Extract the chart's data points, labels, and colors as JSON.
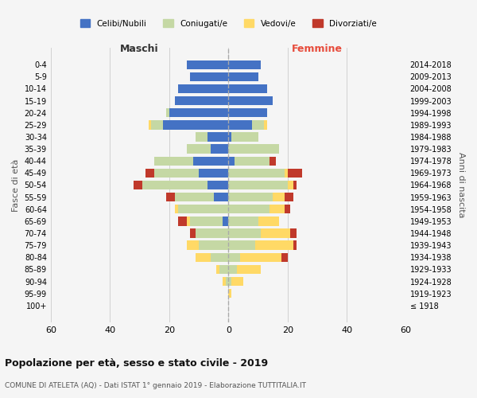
{
  "age_groups": [
    "100+",
    "95-99",
    "90-94",
    "85-89",
    "80-84",
    "75-79",
    "70-74",
    "65-69",
    "60-64",
    "55-59",
    "50-54",
    "45-49",
    "40-44",
    "35-39",
    "30-34",
    "25-29",
    "20-24",
    "15-19",
    "10-14",
    "5-9",
    "0-4"
  ],
  "birth_years": [
    "≤ 1918",
    "1919-1923",
    "1924-1928",
    "1929-1933",
    "1934-1938",
    "1939-1943",
    "1944-1948",
    "1949-1953",
    "1954-1958",
    "1959-1963",
    "1964-1968",
    "1969-1973",
    "1974-1978",
    "1979-1983",
    "1984-1988",
    "1989-1993",
    "1994-1998",
    "1999-2003",
    "2004-2008",
    "2009-2013",
    "2014-2018"
  ],
  "maschi": {
    "celibi": [
      0,
      0,
      0,
      0,
      0,
      0,
      0,
      2,
      0,
      5,
      7,
      10,
      12,
      6,
      7,
      22,
      20,
      18,
      17,
      13,
      14
    ],
    "coniugati": [
      0,
      0,
      1,
      3,
      6,
      10,
      11,
      11,
      17,
      13,
      22,
      15,
      13,
      8,
      4,
      4,
      1,
      0,
      0,
      0,
      0
    ],
    "vedovi": [
      0,
      0,
      1,
      1,
      5,
      4,
      0,
      1,
      1,
      0,
      0,
      0,
      0,
      0,
      0,
      1,
      0,
      0,
      0,
      0,
      0
    ],
    "divorziati": [
      0,
      0,
      0,
      0,
      0,
      0,
      2,
      3,
      0,
      3,
      3,
      3,
      0,
      0,
      0,
      0,
      0,
      0,
      0,
      0,
      0
    ]
  },
  "femmine": {
    "nubili": [
      0,
      0,
      0,
      0,
      0,
      0,
      0,
      0,
      0,
      0,
      0,
      0,
      2,
      0,
      1,
      8,
      13,
      15,
      13,
      10,
      11
    ],
    "coniugate": [
      0,
      0,
      1,
      3,
      4,
      9,
      11,
      10,
      14,
      15,
      20,
      19,
      12,
      17,
      9,
      4,
      0,
      0,
      0,
      0,
      0
    ],
    "vedove": [
      0,
      1,
      4,
      8,
      14,
      13,
      10,
      7,
      5,
      4,
      2,
      1,
      0,
      0,
      0,
      1,
      0,
      0,
      0,
      0,
      0
    ],
    "divorziate": [
      0,
      0,
      0,
      0,
      2,
      1,
      2,
      0,
      2,
      3,
      1,
      5,
      2,
      0,
      0,
      0,
      0,
      0,
      0,
      0,
      0
    ]
  },
  "colors": {
    "celibi": "#4472c4",
    "coniugati": "#c5d8a4",
    "vedovi": "#ffd966",
    "divorziati": "#c0392b"
  },
  "title": "Popolazione per età, sesso e stato civile - 2019",
  "subtitle": "COMUNE DI ATELETA (AQ) - Dati ISTAT 1° gennaio 2019 - Elaborazione TUTTITALIA.IT",
  "xlabel_left": "Maschi",
  "xlabel_right": "Femmine",
  "ylabel_left": "Fasce di età",
  "ylabel_right": "Anni di nascita",
  "xlim": 60,
  "legend_labels": [
    "Celibi/Nubili",
    "Coniugati/e",
    "Vedovi/e",
    "Divorziati/e"
  ],
  "background_color": "#f5f5f5"
}
